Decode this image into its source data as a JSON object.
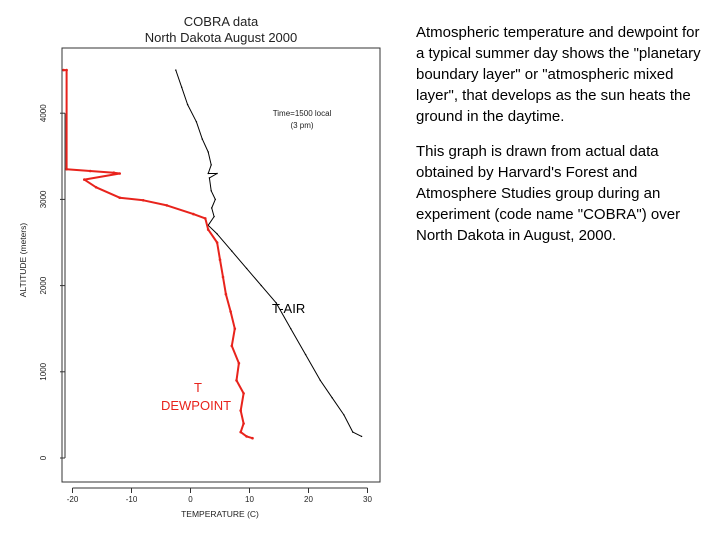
{
  "chart_data": {
    "type": "line",
    "title": [
      "COBRA data",
      "North Dakota August 2000"
    ],
    "xlabel": "TEMPERATURE (C)",
    "ylabel": "ALTITUDE (meters)",
    "xlim": [
      -22,
      31
    ],
    "ylim": [
      -50,
      4650
    ],
    "x_ticks": [
      -20,
      -10,
      0,
      10,
      20,
      30
    ],
    "y_ticks": [
      0,
      1000,
      2000,
      3000,
      4000
    ],
    "annotation": [
      "Time=1500 local",
      "(3 pm)"
    ],
    "series": [
      {
        "name": "T-AIR",
        "color": "#000000",
        "points": [
          [
            -2.5,
            4500
          ],
          [
            -1.5,
            4300
          ],
          [
            -0.5,
            4100
          ],
          [
            1.0,
            3900
          ],
          [
            2.0,
            3700
          ],
          [
            3.0,
            3550
          ],
          [
            3.5,
            3400
          ],
          [
            3.0,
            3300
          ],
          [
            4.5,
            3300
          ],
          [
            3.2,
            3250
          ],
          [
            3.5,
            3100
          ],
          [
            4.2,
            3000
          ],
          [
            3.6,
            2900
          ],
          [
            4.0,
            2800
          ],
          [
            3.0,
            2700
          ],
          [
            4.5,
            2600
          ],
          [
            7.0,
            2400
          ],
          [
            9.5,
            2200
          ],
          [
            12.0,
            2000
          ],
          [
            14.5,
            1800
          ],
          [
            17.0,
            1500
          ],
          [
            19.5,
            1200
          ],
          [
            22.0,
            900
          ],
          [
            24.0,
            700
          ],
          [
            26.0,
            500
          ],
          [
            27.5,
            300
          ],
          [
            29.0,
            250
          ]
        ]
      },
      {
        "name": "T DEWPOINT",
        "color": "#e8231c",
        "points": [
          [
            -21.5,
            4500
          ],
          [
            -21.0,
            4500
          ],
          [
            -21.0,
            3350
          ],
          [
            -17.0,
            3330
          ],
          [
            -13.0,
            3310
          ],
          [
            -12.0,
            3300
          ],
          [
            -18.0,
            3230
          ],
          [
            -16.0,
            3140
          ],
          [
            -12.0,
            3020
          ],
          [
            -8.0,
            2990
          ],
          [
            -4.0,
            2930
          ],
          [
            0.5,
            2830
          ],
          [
            2.5,
            2780
          ],
          [
            3.0,
            2650
          ],
          [
            4.5,
            2500
          ],
          [
            5.0,
            2300
          ],
          [
            5.5,
            2100
          ],
          [
            6.0,
            1900
          ],
          [
            6.8,
            1700
          ],
          [
            7.5,
            1500
          ],
          [
            7.0,
            1300
          ],
          [
            8.2,
            1100
          ],
          [
            7.8,
            900
          ],
          [
            9.0,
            750
          ],
          [
            8.5,
            550
          ],
          [
            9.0,
            400
          ],
          [
            8.5,
            300
          ],
          [
            9.5,
            250
          ],
          [
            10.5,
            230
          ]
        ]
      }
    ]
  },
  "labels": {
    "tair": "T-AIR",
    "dew_line1": "T",
    "dew_line2": "DEWPOINT"
  },
  "description": {
    "para1": "Atmospheric temperature and dewpoint for a typical summer day shows the \"planetary boundary layer\" or \"atmospheric mixed layer\", that develops as the sun heats the ground in the daytime.",
    "para2": "This graph is drawn from actual data obtained by Harvard's Forest and Atmosphere Studies group during an experiment (code name \"COBRA\") over North Dakota in August, 2000."
  }
}
